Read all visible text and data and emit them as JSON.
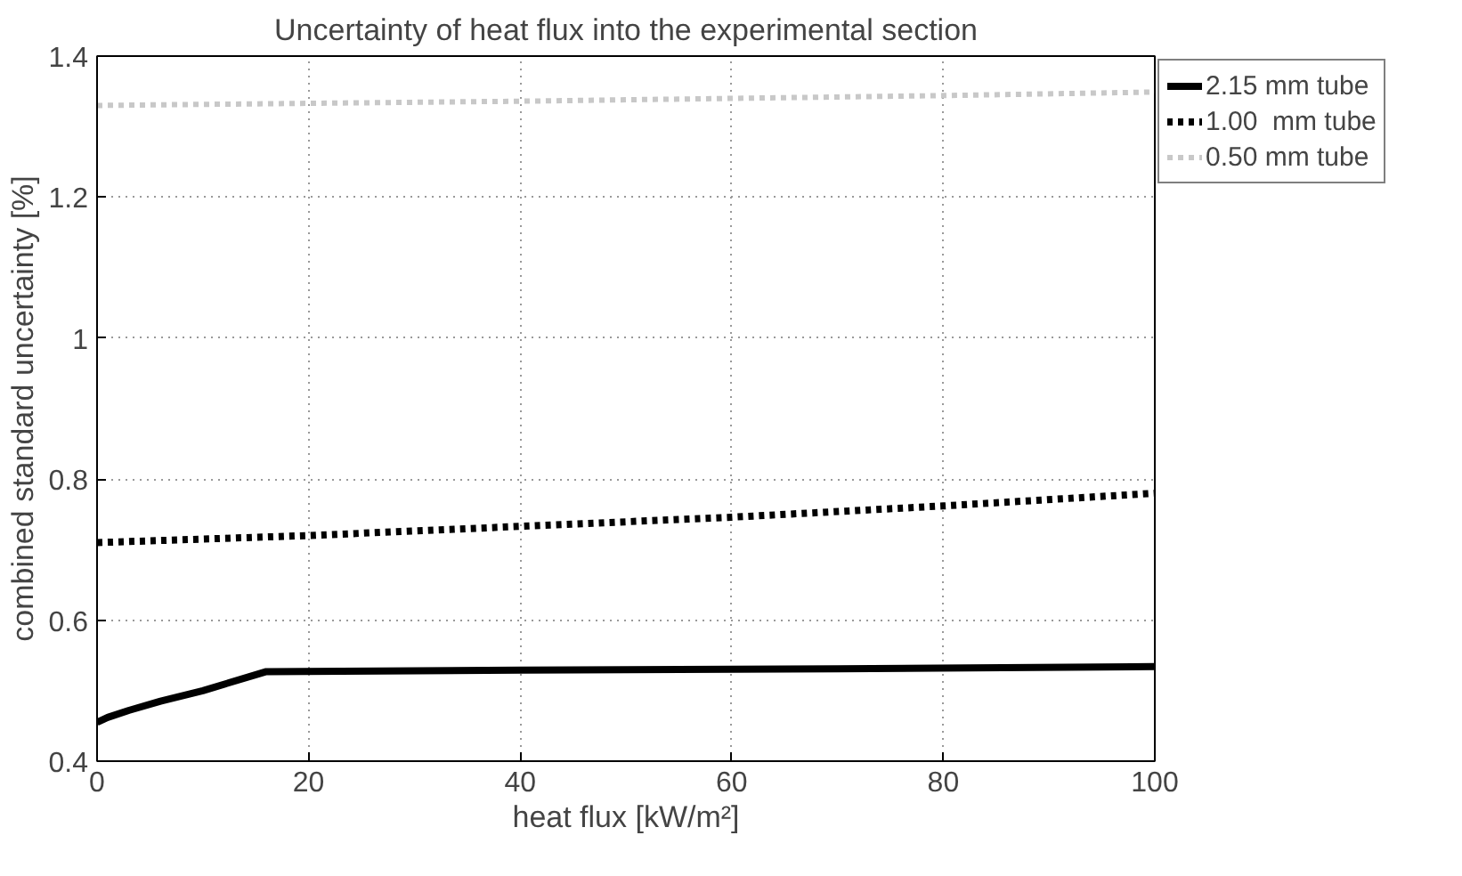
{
  "chart_data": {
    "type": "line",
    "title": "Uncertainty of heat flux into the experimental section",
    "xlabel": "heat flux [kW/m²]",
    "ylabel": "combined standard uncertainty [%]",
    "xlim": [
      0,
      100
    ],
    "ylim": [
      0.4,
      1.4
    ],
    "xticks": [
      0,
      20,
      40,
      60,
      80,
      100
    ],
    "yticks": [
      0.4,
      0.6,
      0.8,
      1,
      1.2,
      1.4
    ],
    "grid": true,
    "legend": "top right",
    "series": [
      {
        "name": "2.15 mm tube",
        "color": "#000000",
        "line_style": "solid",
        "x": [
          0,
          1,
          3,
          6,
          10,
          16,
          40,
          70,
          100
        ],
        "values": [
          0.455,
          0.462,
          0.472,
          0.485,
          0.5,
          0.527,
          0.529,
          0.531,
          0.534
        ]
      },
      {
        "name": "1.00  mm tube",
        "color": "#000000",
        "line_style": "dotted",
        "x": [
          0,
          20,
          40,
          60,
          80,
          100
        ],
        "values": [
          0.71,
          0.72,
          0.733,
          0.746,
          0.762,
          0.78
        ]
      },
      {
        "name": "0.50 mm tube",
        "color": "#c8c8c8",
        "line_style": "dotted",
        "x": [
          0,
          20,
          40,
          60,
          80,
          100
        ],
        "values": [
          1.33,
          1.333,
          1.336,
          1.34,
          1.344,
          1.349
        ]
      }
    ]
  }
}
